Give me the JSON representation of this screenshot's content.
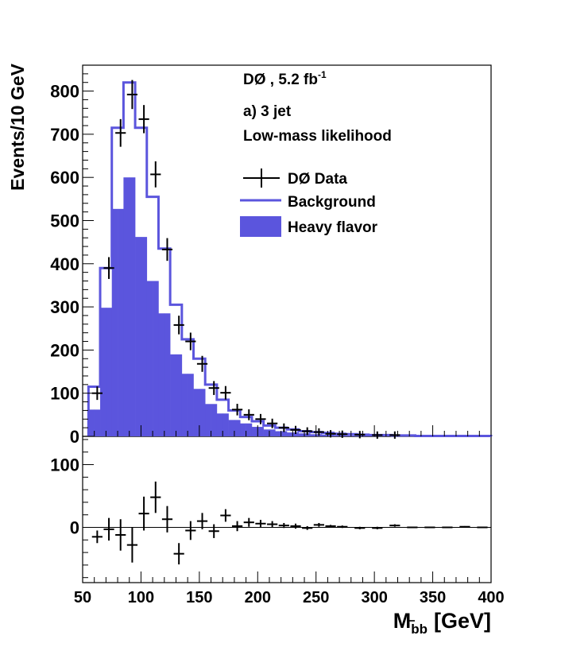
{
  "chart_data": {
    "type": "bar",
    "experiment": "DØ",
    "luminosity": "5.2 fb",
    "luminosity_exp": "-1",
    "luminosity_sep": " , ",
    "panel": "a) 3 jet",
    "selection": "Low-mass likelihood",
    "ylabel": "Events/10 GeV",
    "xlabel_main": "M",
    "xlabel_sub": "bb",
    "xlabel_unit": "[GeV]",
    "legend": [
      {
        "label": "DØ  Data",
        "style": "data"
      },
      {
        "label": "Background",
        "style": "line"
      },
      {
        "label": "Heavy flavor",
        "style": "fill"
      }
    ],
    "colors": {
      "signal": "#5b55dd",
      "data": "#000000"
    },
    "xlim": [
      50,
      400
    ],
    "ylim": [
      0,
      860
    ],
    "ylim_residual": [
      -88,
      145
    ],
    "x_ticks": [
      "50",
      "100",
      "150",
      "200",
      "250",
      "300",
      "350",
      "400"
    ],
    "y_ticks": [
      "0",
      "100",
      "200",
      "300",
      "400",
      "500",
      "600",
      "700",
      "800"
    ],
    "y_ticks_residual": [
      "0",
      "100"
    ],
    "bin_edges": [
      55,
      60,
      65,
      70,
      75,
      80,
      85,
      90,
      95,
      100,
      105,
      110,
      115,
      120,
      125,
      130,
      135,
      140,
      145,
      150,
      155,
      160,
      165,
      170,
      175,
      180,
      185,
      190,
      195,
      200,
      205,
      210,
      215,
      220,
      225,
      230,
      235,
      240,
      245,
      250,
      255,
      260,
      265,
      270,
      275,
      280,
      285,
      290,
      295,
      300,
      305,
      310,
      315,
      320,
      325,
      330,
      335,
      340,
      345,
      350,
      355,
      360,
      365,
      370,
      375,
      380,
      385,
      390,
      395,
      400
    ],
    "background": [
      115,
      115,
      390,
      390,
      715,
      715,
      820,
      820,
      715,
      715,
      555,
      555,
      435,
      435,
      305,
      305,
      225,
      225,
      180,
      180,
      120,
      120,
      85,
      85,
      60,
      60,
      45,
      45,
      35,
      35,
      25,
      25,
      20,
      20,
      16,
      16,
      12,
      12,
      10,
      10,
      8,
      8,
      6,
      6,
      5,
      5,
      4,
      4,
      3,
      3,
      3,
      3,
      2,
      2,
      2,
      2,
      1,
      1,
      1,
      1,
      1,
      1,
      1,
      1,
      1,
      1,
      1,
      1,
      1
    ],
    "heavy_flavor": [
      62,
      62,
      298,
      298,
      527,
      527,
      600,
      600,
      462,
      462,
      360,
      360,
      285,
      285,
      190,
      190,
      145,
      145,
      110,
      110,
      75,
      75,
      53,
      53,
      38,
      38,
      30,
      30,
      22,
      22,
      16,
      16,
      12,
      12,
      9,
      9,
      7,
      7,
      5,
      5,
      4,
      4,
      3,
      3,
      2,
      2,
      2,
      2,
      1,
      1,
      1,
      1,
      1,
      1,
      1,
      1,
      1,
      1,
      1,
      1,
      1,
      1,
      1,
      1,
      1,
      1,
      1,
      1,
      1
    ],
    "data_points": [
      {
        "x": 62.5,
        "y": 100
      },
      {
        "x": 72.5,
        "y": 390
      },
      {
        "x": 82.5,
        "y": 703
      },
      {
        "x": 92.5,
        "y": 792
      },
      {
        "x": 102.5,
        "y": 735
      },
      {
        "x": 112.5,
        "y": 607
      },
      {
        "x": 122.5,
        "y": 433
      },
      {
        "x": 132.5,
        "y": 258
      },
      {
        "x": 142.5,
        "y": 220
      },
      {
        "x": 152.5,
        "y": 168
      },
      {
        "x": 162.5,
        "y": 112
      },
      {
        "x": 172.5,
        "y": 101
      },
      {
        "x": 182.5,
        "y": 62
      },
      {
        "x": 192.5,
        "y": 50
      },
      {
        "x": 202.5,
        "y": 40
      },
      {
        "x": 212.5,
        "y": 30
      },
      {
        "x": 222.5,
        "y": 20
      },
      {
        "x": 232.5,
        "y": 15
      },
      {
        "x": 242.5,
        "y": 12
      },
      {
        "x": 252.5,
        "y": 10
      },
      {
        "x": 262.5,
        "y": 6
      },
      {
        "x": 272.5,
        "y": 5
      },
      {
        "x": 287.5,
        "y": 4
      },
      {
        "x": 302.5,
        "y": 3
      },
      {
        "x": 317.5,
        "y": 3
      }
    ],
    "residuals": [
      {
        "x": 62.5,
        "y": -15,
        "err": 10
      },
      {
        "x": 72.5,
        "y": -3,
        "err": 18
      },
      {
        "x": 82.5,
        "y": -12,
        "err": 25
      },
      {
        "x": 92.5,
        "y": -28,
        "err": 28
      },
      {
        "x": 102.5,
        "y": 22,
        "err": 27
      },
      {
        "x": 112.5,
        "y": 48,
        "err": 25
      },
      {
        "x": 122.5,
        "y": 13,
        "err": 21
      },
      {
        "x": 132.5,
        "y": -42,
        "err": 17
      },
      {
        "x": 142.5,
        "y": -5,
        "err": 15
      },
      {
        "x": 152.5,
        "y": 10,
        "err": 13
      },
      {
        "x": 162.5,
        "y": -6,
        "err": 11
      },
      {
        "x": 172.5,
        "y": 19,
        "err": 10
      },
      {
        "x": 182.5,
        "y": 2,
        "err": 8
      },
      {
        "x": 192.5,
        "y": 8,
        "err": 7
      },
      {
        "x": 202.5,
        "y": 6,
        "err": 6
      },
      {
        "x": 212.5,
        "y": 5,
        "err": 5
      },
      {
        "x": 222.5,
        "y": 3,
        "err": 4
      },
      {
        "x": 232.5,
        "y": 2,
        "err": 4
      },
      {
        "x": 242.5,
        "y": -1,
        "err": 3
      },
      {
        "x": 252.5,
        "y": 4,
        "err": 3
      },
      {
        "x": 262.5,
        "y": 2,
        "err": 2
      },
      {
        "x": 272.5,
        "y": 1,
        "err": 2
      },
      {
        "x": 287.5,
        "y": -1,
        "err": 2
      },
      {
        "x": 302.5,
        "y": -1,
        "err": 2
      },
      {
        "x": 317.5,
        "y": 3,
        "err": 2
      },
      {
        "x": 332.5,
        "y": 0,
        "err": 1
      },
      {
        "x": 347.5,
        "y": 0,
        "err": 1
      },
      {
        "x": 362.5,
        "y": 0,
        "err": 1
      },
      {
        "x": 377.5,
        "y": 1,
        "err": 1
      },
      {
        "x": 392.5,
        "y": 0,
        "err": 1
      }
    ]
  }
}
